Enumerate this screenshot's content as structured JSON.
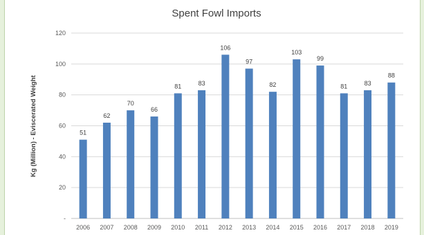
{
  "chart_data": {
    "type": "bar",
    "title": "Spent Fowl Imports",
    "xlabel": "",
    "ylabel": "Kg (Million) - Eviscerated Weight",
    "ylim": [
      0,
      120
    ],
    "yticks": [
      "-",
      "20",
      "40",
      "60",
      "80",
      "100",
      "120"
    ],
    "categories": [
      "2006",
      "2007",
      "2008",
      "2009",
      "2010",
      "2011",
      "2012",
      "2013",
      "2014",
      "2015",
      "2016",
      "2017",
      "2018",
      "2019"
    ],
    "values": [
      51,
      62,
      70,
      66,
      81,
      83,
      106,
      97,
      82,
      103,
      99,
      81,
      83,
      88
    ],
    "grid": true,
    "legend": "none",
    "bar_color": "#4f81bd"
  }
}
